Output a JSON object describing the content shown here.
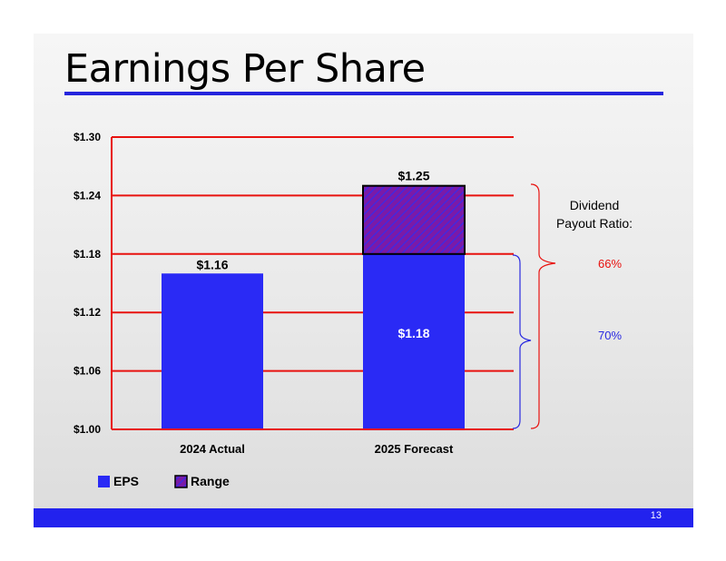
{
  "slide": {
    "title": "Earnings Per Share",
    "page_number": "13",
    "colors": {
      "accent": "#2525dd",
      "footer": "#2222ee"
    }
  },
  "chart_data": {
    "type": "bar",
    "title": "Earnings Per Share",
    "categories": [
      "2024 Actual",
      "2025 Forecast"
    ],
    "series": [
      {
        "name": "EPS",
        "values": [
          1.16,
          1.18
        ],
        "color": "#2a2af5"
      },
      {
        "name": "Range",
        "base": [
          null,
          1.18
        ],
        "top": [
          null,
          1.25
        ],
        "color": "#7a1aa8"
      }
    ],
    "data_labels": {
      "eps_2024": "$1.16",
      "eps_2025": "$1.18",
      "range_top_2025": "$1.25"
    },
    "yticks": [
      "$1.00",
      "$1.06",
      "$1.12",
      "$1.18",
      "$1.24",
      "$1.30"
    ],
    "ylim": [
      1.0,
      1.3
    ],
    "xlabel": "",
    "ylabel": "",
    "grid": true,
    "gridline_color": "#e8120f",
    "legend": [
      {
        "label": "EPS",
        "swatch": "solid"
      },
      {
        "label": "Range",
        "swatch": "hatched"
      }
    ],
    "legend_position": "bottom-left",
    "annotation": {
      "label_line1": "Dividend",
      "label_line2": "Payout Ratio:",
      "values": [
        {
          "text": "66%",
          "color": "#e8120f"
        },
        {
          "text": "70%",
          "color": "#2a2ae0"
        }
      ]
    }
  }
}
